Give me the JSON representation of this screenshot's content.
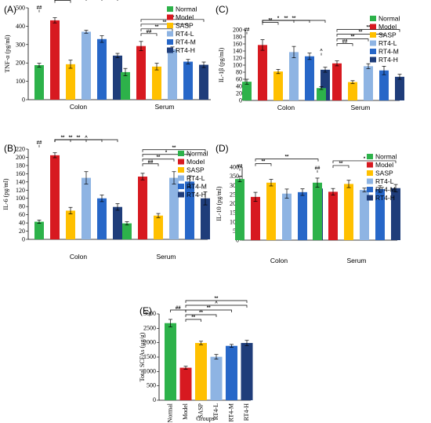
{
  "groups": [
    "Normal",
    "Model",
    "SASP",
    "RT4-L",
    "RT4-M",
    "RT4-H"
  ],
  "colors": [
    "#2db24a",
    "#d71920",
    "#ffc000",
    "#8eb4e3",
    "#2767c8",
    "#1f3d7a"
  ],
  "chart_data": [
    {
      "panel": "(A)",
      "type": "bar",
      "ylabel": "TNF-α (pg/ml)",
      "ylim": [
        0,
        500
      ],
      "yticks": [
        0,
        100,
        200,
        300,
        400,
        500
      ],
      "categories": [
        "Colon",
        "Serum"
      ],
      "series": [
        {
          "name": "Normal",
          "values": [
            188,
            150
          ],
          "errors": [
            10,
            20
          ]
        },
        {
          "name": "Model",
          "values": [
            432,
            292
          ],
          "errors": [
            14,
            25
          ]
        },
        {
          "name": "SASP",
          "values": [
            193,
            180
          ],
          "errors": [
            22,
            18
          ]
        },
        {
          "name": "RT4-L",
          "values": [
            370,
            275
          ],
          "errors": [
            8,
            12
          ]
        },
        {
          "name": "RT4-M",
          "values": [
            330,
            207
          ],
          "errors": [
            18,
            12
          ]
        },
        {
          "name": "RT4-H",
          "values": [
            240,
            190
          ],
          "errors": [
            12,
            15
          ]
        }
      ],
      "annotations": [
        "##",
        "**",
        "**",
        "**",
        "**",
        "##",
        "**",
        "**",
        "**"
      ]
    },
    {
      "panel": "(B)",
      "type": "bar",
      "ylabel": "IL-6 (pg/ml)",
      "ylim": [
        0,
        220
      ],
      "yticks": [
        0,
        20,
        40,
        60,
        80,
        100,
        120,
        140,
        160,
        180,
        200,
        220
      ],
      "categories": [
        "Colon",
        "Serum"
      ],
      "series": [
        {
          "name": "Normal",
          "values": [
            43,
            39
          ],
          "errors": [
            4,
            4
          ]
        },
        {
          "name": "Model",
          "values": [
            205,
            153
          ],
          "errors": [
            6,
            8
          ]
        },
        {
          "name": "SASP",
          "values": [
            70,
            58
          ],
          "errors": [
            8,
            5
          ]
        },
        {
          "name": "RT4-L",
          "values": [
            150,
            150
          ],
          "errors": [
            15,
            15
          ]
        },
        {
          "name": "RT4-M",
          "values": [
            100,
            141
          ],
          "errors": [
            8,
            14
          ]
        },
        {
          "name": "RT4-H",
          "values": [
            79,
            100
          ],
          "errors": [
            8,
            16
          ]
        }
      ],
      "annotations": [
        "##",
        "**",
        "**",
        "**",
        "^",
        "##",
        "**",
        "*",
        "**"
      ]
    },
    {
      "panel": "(C)",
      "type": "bar",
      "ylabel": "IL-1β (pg/ml)",
      "ylim": [
        0,
        200
      ],
      "yticks": [
        0,
        20,
        40,
        60,
        80,
        100,
        120,
        140,
        160,
        180,
        200
      ],
      "categories": [
        "Colon",
        "Serum"
      ],
      "series": [
        {
          "name": "Normal",
          "values": [
            53,
            35
          ],
          "errors": [
            7,
            4
          ]
        },
        {
          "name": "Model",
          "values": [
            157,
            105
          ],
          "errors": [
            15,
            7
          ]
        },
        {
          "name": "SASP",
          "values": [
            82,
            52
          ],
          "errors": [
            6,
            4
          ]
        },
        {
          "name": "RT4-L",
          "values": [
            137,
            97
          ],
          "errors": [
            16,
            7
          ]
        },
        {
          "name": "RT4-M",
          "values": [
            125,
            85
          ],
          "errors": [
            9,
            12
          ]
        },
        {
          "name": "RT4-H",
          "values": [
            87,
            67
          ],
          "errors": [
            7,
            7
          ]
        }
      ],
      "annotations": [
        "##",
        "**",
        "*",
        "**",
        "**",
        "^",
        "##",
        "**",
        "**",
        "**"
      ]
    },
    {
      "panel": "(D)",
      "type": "bar",
      "ylabel": "IL-10 (pg/ml)",
      "ylim": [
        0,
        400
      ],
      "yticks": [
        0,
        50,
        100,
        150,
        200,
        250,
        300,
        350,
        400
      ],
      "categories": [
        "Colon",
        "Serum"
      ],
      "series": [
        {
          "name": "Normal",
          "values": [
            335,
            315
          ],
          "errors": [
            15,
            25
          ]
        },
        {
          "name": "Model",
          "values": [
            237,
            265
          ],
          "errors": [
            25,
            18
          ]
        },
        {
          "name": "SASP",
          "values": [
            315,
            308
          ],
          "errors": [
            18,
            20
          ]
        },
        {
          "name": "RT4-L",
          "values": [
            255,
            275
          ],
          "errors": [
            25,
            10
          ]
        },
        {
          "name": "RT4-M",
          "values": [
            263,
            280
          ],
          "errors": [
            18,
            18
          ]
        },
        {
          "name": "RT4-H",
          "values": [
            283,
            285
          ],
          "errors": [
            25,
            20
          ]
        }
      ],
      "annotations": [
        "##",
        "**",
        "**",
        "##",
        "**",
        "*"
      ]
    },
    {
      "panel": "(E)",
      "type": "bar",
      "ylabel": "Total SCFAs (μg/g)",
      "xlabel": "Groups",
      "ylim": [
        0,
        3000
      ],
      "yticks": [
        0,
        500,
        1000,
        1500,
        2000,
        2500,
        3000
      ],
      "categories": [
        "Normal",
        "Model",
        "SASP",
        "RT4-L",
        "RT4-M",
        "RT4-H"
      ],
      "values": [
        2680,
        1130,
        1990,
        1510,
        1890,
        1990
      ],
      "errors": [
        130,
        50,
        60,
        80,
        50,
        90
      ],
      "annotations": [
        "##",
        "**",
        "**",
        "**",
        "^",
        "**"
      ]
    }
  ]
}
